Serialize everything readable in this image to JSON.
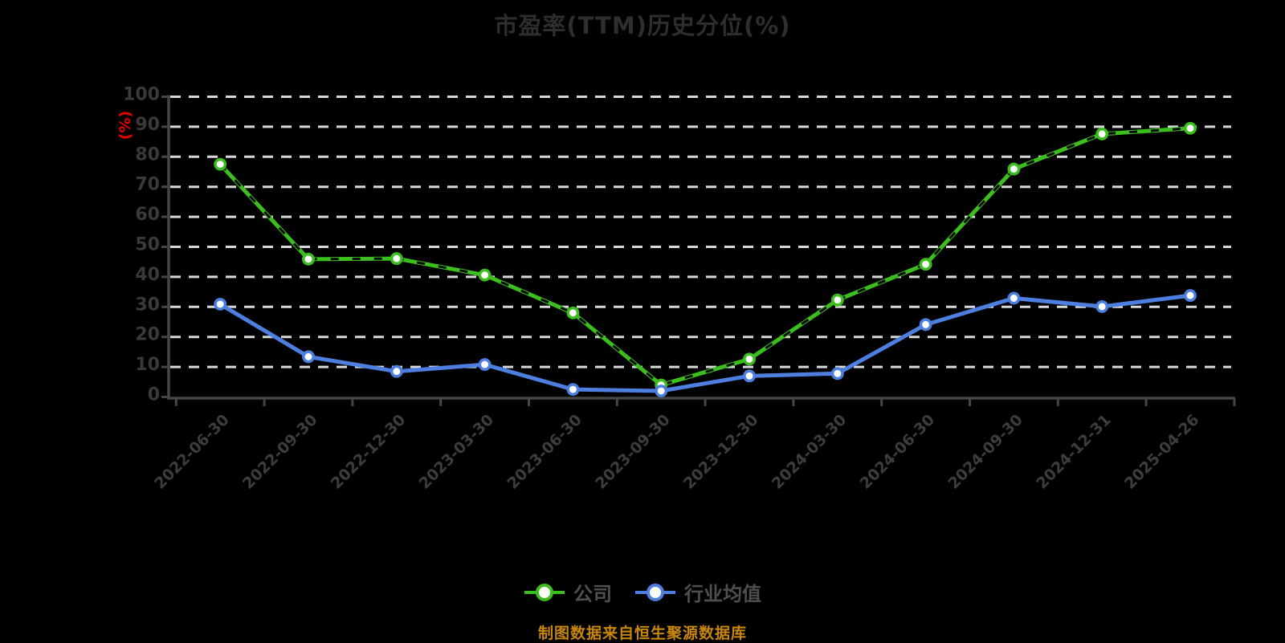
{
  "chart_data": {
    "type": "line",
    "title": "市盈率(TTM)历史分位(%)",
    "unit_label": "(%)",
    "unit_label_color": "#e60000",
    "source_note": "制图数据来自恒生聚源数据库",
    "source_note_color": "#c8860b",
    "legend_position": "bottom",
    "grid": "horizontal-dashed-white",
    "background_color": "#000000",
    "categories": [
      "2022-06-30",
      "2022-09-30",
      "2022-12-30",
      "2023-03-30",
      "2023-06-30",
      "2023-09-30",
      "2023-12-30",
      "2024-03-30",
      "2024-06-30",
      "2024-09-30",
      "2024-12-31",
      "2025-04-26"
    ],
    "series": [
      {
        "name": "公司",
        "color": "#3cbe1e",
        "marker": "circle-white-fill",
        "overlay_dash": true,
        "values": [
          77.5,
          45.9,
          46.1,
          40.6,
          28.0,
          4.0,
          12.6,
          32.3,
          44.2,
          75.9,
          87.6,
          89.5
        ]
      },
      {
        "name": "行业均值",
        "color": "#4d7fe0",
        "marker": "circle-white-fill",
        "overlay_dash": false,
        "values": [
          30.9,
          13.4,
          8.5,
          10.8,
          2.5,
          2.0,
          7.0,
          7.8,
          24.1,
          32.9,
          30.1,
          33.8
        ]
      }
    ],
    "y_axis": {
      "min": 0,
      "max": 100,
      "step": 10,
      "tick_labels": [
        "0",
        "10",
        "20",
        "30",
        "40",
        "50",
        "60",
        "70",
        "80",
        "90",
        "100"
      ]
    }
  }
}
